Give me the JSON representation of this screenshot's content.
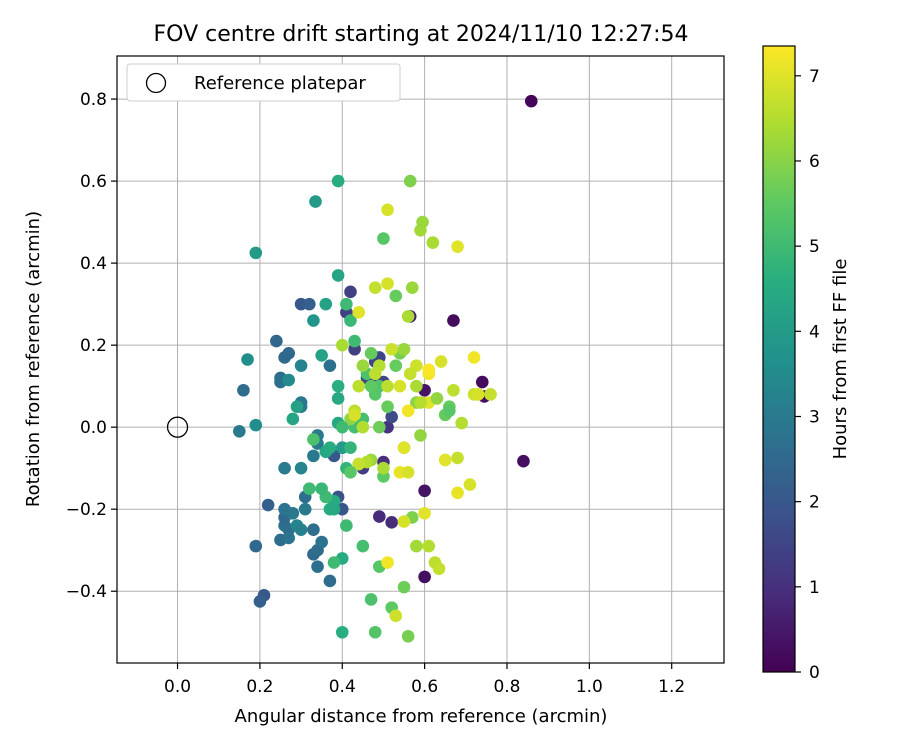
{
  "chart_data": {
    "type": "scatter",
    "title": "FOV centre drift starting at 2024/11/10 12:27:54",
    "xlabel": "Angular distance from reference (arcmin)",
    "ylabel": "Rotation from reference (arcmin)",
    "xlim": [
      -0.147,
      1.327
    ],
    "ylim": [
      -0.575,
      0.905
    ],
    "xticks": [
      "0.0",
      "0.2",
      "0.4",
      "0.6",
      "0.8",
      "1.0",
      "1.2"
    ],
    "yticks": [
      "−0.4",
      "−0.2",
      "0.0",
      "0.2",
      "0.4",
      "0.6",
      "0.8"
    ],
    "grid": true,
    "legend": {
      "placement": "top-left",
      "entries": [
        "Reference platepar"
      ]
    },
    "reference_point": {
      "x": 0.0,
      "y": 0.0
    },
    "colorbar": {
      "label": "Hours from first FF file",
      "range": [
        0,
        7.35
      ],
      "ticks": [
        "0",
        "1",
        "2",
        "3",
        "4",
        "5",
        "6",
        "7"
      ],
      "colormap": "viridis"
    },
    "series": [
      {
        "points": [
          [
            0.859,
            0.795,
            0.1
          ],
          [
            0.67,
            0.26,
            0.2
          ],
          [
            0.74,
            0.11,
            0.2
          ],
          [
            0.745,
            0.075,
            0.3
          ],
          [
            0.84,
            -0.083,
            0.3
          ],
          [
            0.6,
            -0.365,
            0.3
          ],
          [
            0.6,
            -0.155,
            0.4
          ],
          [
            0.6,
            0.09,
            0.4
          ],
          [
            0.565,
            0.27,
            0.6
          ],
          [
            0.49,
            -0.218,
            0.9
          ],
          [
            0.52,
            -0.232,
            0.9
          ],
          [
            0.5,
            -0.085,
            1.0
          ],
          [
            0.51,
            0.0,
            1.1
          ],
          [
            0.47,
            0.11,
            1.2
          ],
          [
            0.45,
            -0.1,
            1.3
          ],
          [
            0.42,
            0.33,
            1.4
          ],
          [
            0.41,
            0.28,
            1.4
          ],
          [
            0.43,
            0.19,
            1.4
          ],
          [
            0.46,
            0.12,
            1.4
          ],
          [
            0.48,
            0.16,
            1.5
          ],
          [
            0.49,
            0.17,
            1.5
          ],
          [
            0.5,
            0.11,
            1.5
          ],
          [
            0.52,
            0.025,
            1.7
          ],
          [
            0.39,
            -0.17,
            1.9
          ],
          [
            0.4,
            -0.2,
            2.0
          ],
          [
            0.38,
            -0.07,
            2.0
          ],
          [
            0.4,
            -0.05,
            2.0
          ],
          [
            0.3,
            0.3,
            2.0
          ],
          [
            0.32,
            0.3,
            2.2
          ],
          [
            0.24,
            0.21,
            2.4
          ],
          [
            0.26,
            0.17,
            2.5
          ],
          [
            0.27,
            0.18,
            2.5
          ],
          [
            0.25,
            0.12,
            2.6
          ],
          [
            0.25,
            0.11,
            2.7
          ],
          [
            0.22,
            -0.19,
            2.2
          ],
          [
            0.21,
            -0.41,
            2.0
          ],
          [
            0.2,
            -0.425,
            2.2
          ],
          [
            0.19,
            -0.29,
            2.5
          ],
          [
            0.25,
            -0.275,
            2.6
          ],
          [
            0.26,
            -0.24,
            2.7
          ],
          [
            0.26,
            -0.22,
            2.5
          ],
          [
            0.27,
            -0.25,
            2.6
          ],
          [
            0.26,
            -0.2,
            2.8
          ],
          [
            0.27,
            -0.27,
            2.8
          ],
          [
            0.28,
            -0.21,
            2.9
          ],
          [
            0.29,
            -0.24,
            3.3
          ],
          [
            0.3,
            -0.25,
            3.2
          ],
          [
            0.31,
            -0.17,
            2.6
          ],
          [
            0.31,
            -0.2,
            3.0
          ],
          [
            0.33,
            -0.25,
            2.6
          ],
          [
            0.33,
            -0.31,
            2.5
          ],
          [
            0.34,
            -0.3,
            2.6
          ],
          [
            0.34,
            -0.34,
            2.7
          ],
          [
            0.35,
            -0.28,
            2.8
          ],
          [
            0.37,
            -0.375,
            2.6
          ],
          [
            0.37,
            0.15,
            2.7
          ],
          [
            0.34,
            -0.02,
            3.0
          ],
          [
            0.34,
            -0.04,
            3.0
          ],
          [
            0.33,
            -0.07,
            3.0
          ],
          [
            0.3,
            0.05,
            3.0
          ],
          [
            0.3,
            0.06,
            2.9
          ],
          [
            0.3,
            0.15,
            3.3
          ],
          [
            0.26,
            -0.1,
            3.0
          ],
          [
            0.3,
            -0.1,
            3.3
          ],
          [
            0.16,
            0.09,
            2.6
          ],
          [
            0.15,
            -0.01,
            3.0
          ],
          [
            0.19,
            0.005,
            3.6
          ],
          [
            0.17,
            0.165,
            3.6
          ],
          [
            0.27,
            0.115,
            3.5
          ],
          [
            0.28,
            0.02,
            4.3
          ],
          [
            0.29,
            0.05,
            4.2
          ],
          [
            0.33,
            0.26,
            3.8
          ],
          [
            0.335,
            0.55,
            4.0
          ],
          [
            0.36,
            0.3,
            4.2
          ],
          [
            0.35,
            0.175,
            4.2
          ],
          [
            0.36,
            -0.06,
            4.4
          ],
          [
            0.37,
            -0.05,
            4.5
          ],
          [
            0.37,
            -0.2,
            4.5
          ],
          [
            0.38,
            -0.18,
            4.5
          ],
          [
            0.38,
            -0.2,
            4.4
          ],
          [
            0.39,
            0.1,
            4.6
          ],
          [
            0.39,
            0.07,
            4.4
          ],
          [
            0.39,
            0.01,
            4.4
          ],
          [
            0.39,
            0.37,
            4.3
          ],
          [
            0.39,
            0.6,
            4.5
          ],
          [
            0.4,
            -0.32,
            4.5
          ],
          [
            0.4,
            -0.5,
            4.6
          ],
          [
            0.41,
            0.3,
            5.0
          ],
          [
            0.41,
            -0.1,
            4.8
          ],
          [
            0.41,
            -0.24,
            5.0
          ],
          [
            0.42,
            0.26,
            4.9
          ],
          [
            0.43,
            0.21,
            5.0
          ],
          [
            0.43,
            0.0,
            5.1
          ],
          [
            0.44,
            -0.09,
            5.2
          ],
          [
            0.45,
            0.02,
            5.1
          ],
          [
            0.45,
            -0.29,
            5.1
          ],
          [
            0.46,
            0.13,
            5.2
          ],
          [
            0.47,
            -0.42,
            5.2
          ],
          [
            0.48,
            -0.5,
            5.3
          ],
          [
            0.48,
            0.08,
            5.4
          ],
          [
            0.49,
            -0.34,
            5.4
          ],
          [
            0.49,
            0.1,
            5.3
          ],
          [
            0.5,
            0.46,
            5.4
          ],
          [
            0.5,
            -0.12,
            5.5
          ],
          [
            0.51,
            0.05,
            5.6
          ],
          [
            0.52,
            -0.44,
            5.5
          ],
          [
            0.53,
            0.15,
            5.6
          ],
          [
            0.53,
            0.32,
            5.6
          ],
          [
            0.54,
            0.18,
            5.8
          ],
          [
            0.55,
            -0.39,
            5.7
          ],
          [
            0.55,
            -0.05,
            5.8
          ],
          [
            0.56,
            -0.51,
            5.8
          ],
          [
            0.565,
            0.6,
            5.9
          ],
          [
            0.57,
            0.34,
            6.2
          ],
          [
            0.57,
            -0.22,
            5.9
          ],
          [
            0.58,
            0.06,
            6.0
          ],
          [
            0.58,
            -0.29,
            6.3
          ],
          [
            0.59,
            -0.02,
            6.1
          ],
          [
            0.59,
            0.48,
            6.3
          ],
          [
            0.595,
            0.5,
            6.2
          ],
          [
            0.61,
            -0.29,
            6.5
          ],
          [
            0.62,
            0.45,
            6.4
          ],
          [
            0.625,
            -0.33,
            6.6
          ],
          [
            0.635,
            -0.345,
            6.7
          ],
          [
            0.64,
            0.16,
            6.9
          ],
          [
            0.65,
            -0.08,
            7.0
          ],
          [
            0.66,
            0.05,
            5.6
          ],
          [
            0.67,
            0.09,
            6.6
          ],
          [
            0.68,
            -0.075,
            6.7
          ],
          [
            0.69,
            0.01,
            6.5
          ],
          [
            0.71,
            -0.14,
            6.9
          ],
          [
            0.72,
            0.08,
            6.8
          ],
          [
            0.73,
            0.08,
            6.9
          ],
          [
            0.76,
            0.08,
            6.7
          ],
          [
            0.68,
            0.44,
            7.0
          ],
          [
            0.68,
            -0.16,
            7.1
          ],
          [
            0.72,
            0.17,
            7.2
          ],
          [
            0.61,
            0.13,
            7.2
          ],
          [
            0.61,
            0.14,
            7.3
          ],
          [
            0.6,
            -0.21,
            7.0
          ],
          [
            0.61,
            0.06,
            7.0
          ],
          [
            0.56,
            0.04,
            7.2
          ],
          [
            0.55,
            -0.05,
            7.0
          ],
          [
            0.54,
            -0.11,
            7.1
          ],
          [
            0.56,
            -0.11,
            6.9
          ],
          [
            0.55,
            -0.23,
            6.9
          ],
          [
            0.58,
            0.15,
            6.8
          ],
          [
            0.58,
            0.1,
            6.4
          ],
          [
            0.565,
            0.13,
            6.7
          ],
          [
            0.54,
            0.1,
            6.9
          ],
          [
            0.51,
            0.53,
            6.9
          ],
          [
            0.51,
            0.35,
            6.9
          ],
          [
            0.52,
            0.19,
            6.8
          ],
          [
            0.51,
            0.1,
            6.6
          ],
          [
            0.5,
            -0.1,
            6.4
          ],
          [
            0.51,
            -0.33,
            7.2
          ],
          [
            0.48,
            0.34,
            6.7
          ],
          [
            0.49,
            0.15,
            6.5
          ],
          [
            0.48,
            0.13,
            6.6
          ],
          [
            0.43,
            0.04,
            6.6
          ],
          [
            0.42,
            0.02,
            6.1
          ],
          [
            0.4,
            0.2,
            6.4
          ],
          [
            0.44,
            0.28,
            7.0
          ],
          [
            0.45,
            0.15,
            6.2
          ],
          [
            0.44,
            0.1,
            6.6
          ],
          [
            0.45,
            0.0,
            6.5
          ],
          [
            0.47,
            -0.08,
            6.2
          ],
          [
            0.46,
            -0.085,
            6.5
          ],
          [
            0.43,
            0.03,
            6.9
          ],
          [
            0.44,
            -0.09,
            6.7
          ],
          [
            0.53,
            -0.46,
            6.8
          ],
          [
            0.55,
            0.19,
            6.2
          ],
          [
            0.56,
            0.27,
            6.4
          ],
          [
            0.59,
            0.06,
            6.5
          ],
          [
            0.63,
            0.07,
            6.1
          ],
          [
            0.65,
            0.03,
            5.6
          ],
          [
            0.66,
            0.04,
            5.4
          ],
          [
            0.4,
            0.0,
            5.0
          ],
          [
            0.42,
            -0.11,
            5.4
          ],
          [
            0.47,
            0.1,
            5.5
          ],
          [
            0.47,
            0.18,
            5.6
          ],
          [
            0.36,
            -0.17,
            5.0
          ],
          [
            0.38,
            -0.33,
            5.0
          ],
          [
            0.35,
            -0.15,
            4.9
          ],
          [
            0.33,
            -0.03,
            5.2
          ],
          [
            0.32,
            -0.15,
            5.0
          ],
          [
            0.19,
            0.425,
            4.0
          ],
          [
            0.49,
            0.0,
            5.7
          ],
          [
            0.4,
            -0.05,
            4.0
          ],
          [
            0.42,
            -0.05,
            4.8
          ]
        ]
      }
    ]
  }
}
